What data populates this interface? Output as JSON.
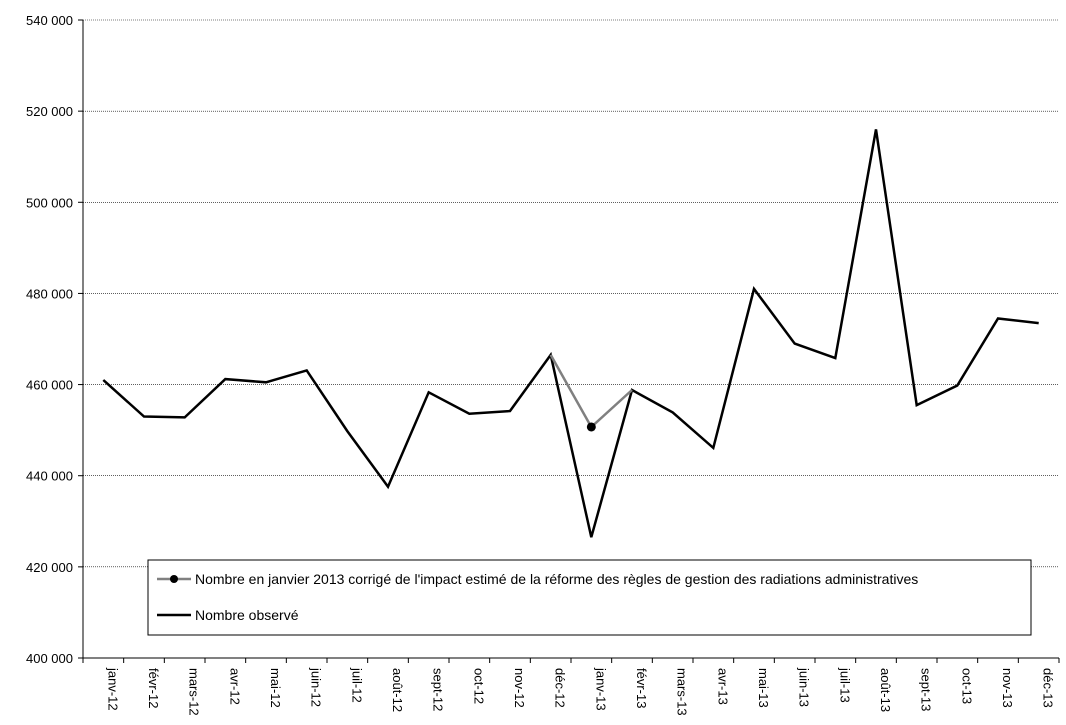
{
  "chart_data": {
    "type": "line",
    "title": "",
    "xlabel": "",
    "ylabel": "",
    "ylim": [
      400000,
      540000
    ],
    "yticks": [
      400000,
      420000,
      440000,
      460000,
      480000,
      500000,
      520000,
      540000
    ],
    "ytick_labels": [
      "400 000",
      "420 000",
      "440 000",
      "460 000",
      "480 000",
      "500 000",
      "520 000",
      "540 000"
    ],
    "grid": true,
    "legend_placement": "bottom",
    "categories": [
      "janv-12",
      "févr-12",
      "mars-12",
      "avr-12",
      "mai-12",
      "juin-12",
      "juil-12",
      "août-12",
      "sept-12",
      "oct-12",
      "nov-12",
      "déc-12",
      "janv-13",
      "févr-13",
      "mars-13",
      "avr-13",
      "mai-13",
      "juin-13",
      "juil-13",
      "août-13",
      "sept-13",
      "oct-13",
      "nov-13",
      "déc-13"
    ],
    "series": [
      {
        "name": "Nombre en janvier 2013 corrigé de l'impact estimé de la réforme des règles de gestion des radiations administratives",
        "color": "#808080",
        "marker": "circle",
        "values": [
          null,
          null,
          null,
          null,
          null,
          null,
          null,
          null,
          null,
          null,
          null,
          466500,
          450700,
          458800,
          null,
          null,
          null,
          null,
          null,
          null,
          null,
          null,
          null,
          null
        ]
      },
      {
        "name": "Nombre observé",
        "color": "#000000",
        "values": [
          461000,
          453000,
          452800,
          461200,
          460500,
          463100,
          449800,
          437600,
          458300,
          453600,
          454200,
          466500,
          426500,
          458800,
          453900,
          446100,
          481000,
          469000,
          465800,
          516000,
          455500,
          459800,
          474500,
          473500
        ]
      }
    ]
  }
}
